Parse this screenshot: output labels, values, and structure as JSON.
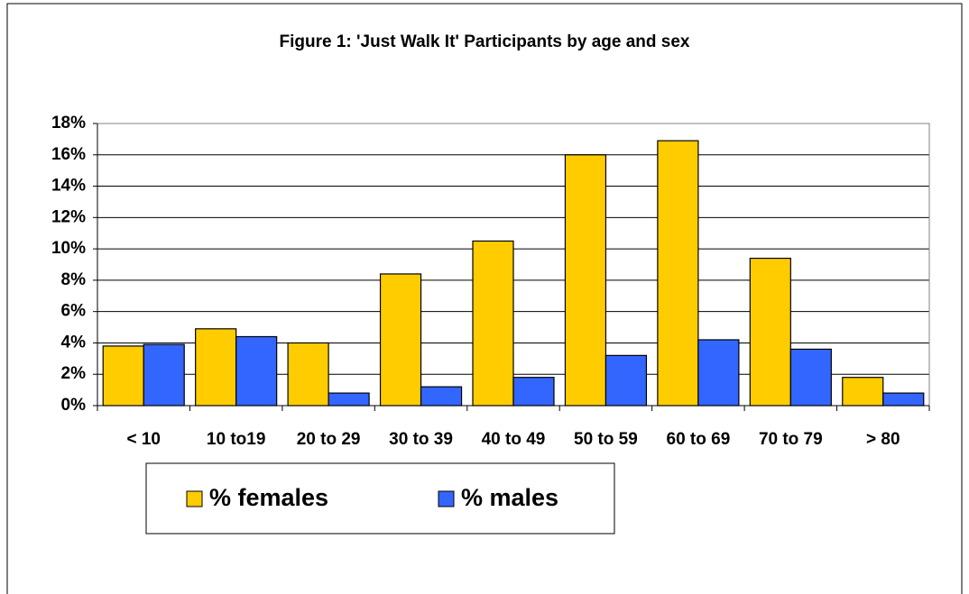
{
  "chart_data": {
    "type": "bar",
    "title": "Figure 1: 'Just Walk It' Participants by age and sex",
    "categories": [
      "< 10",
      "10 to19",
      "20 to 29",
      "30 to 39",
      "40 to 49",
      "50 to 59",
      "60 to 69",
      "70 to 79",
      "> 80"
    ],
    "series": [
      {
        "name": "% females",
        "color": "#ffcc00",
        "values": [
          3.8,
          4.9,
          4.0,
          8.4,
          10.5,
          16.0,
          16.9,
          9.4,
          1.8
        ]
      },
      {
        "name": "% males",
        "color": "#3366ff",
        "values": [
          3.9,
          4.4,
          0.8,
          1.2,
          1.8,
          3.2,
          4.2,
          3.6,
          0.8
        ]
      }
    ],
    "ylim": [
      0,
      18
    ],
    "yticks": [
      {
        "value": 0,
        "label": "0%"
      },
      {
        "value": 2,
        "label": "2%"
      },
      {
        "value": 4,
        "label": "4%"
      },
      {
        "value": 6,
        "label": "6%"
      },
      {
        "value": 8,
        "label": "8%"
      },
      {
        "value": 10,
        "label": "10%"
      },
      {
        "value": 12,
        "label": "12%"
      },
      {
        "value": 14,
        "label": "14%"
      },
      {
        "value": 16,
        "label": "16%"
      },
      {
        "value": 18,
        "label": "18%"
      }
    ],
    "grid": true
  }
}
